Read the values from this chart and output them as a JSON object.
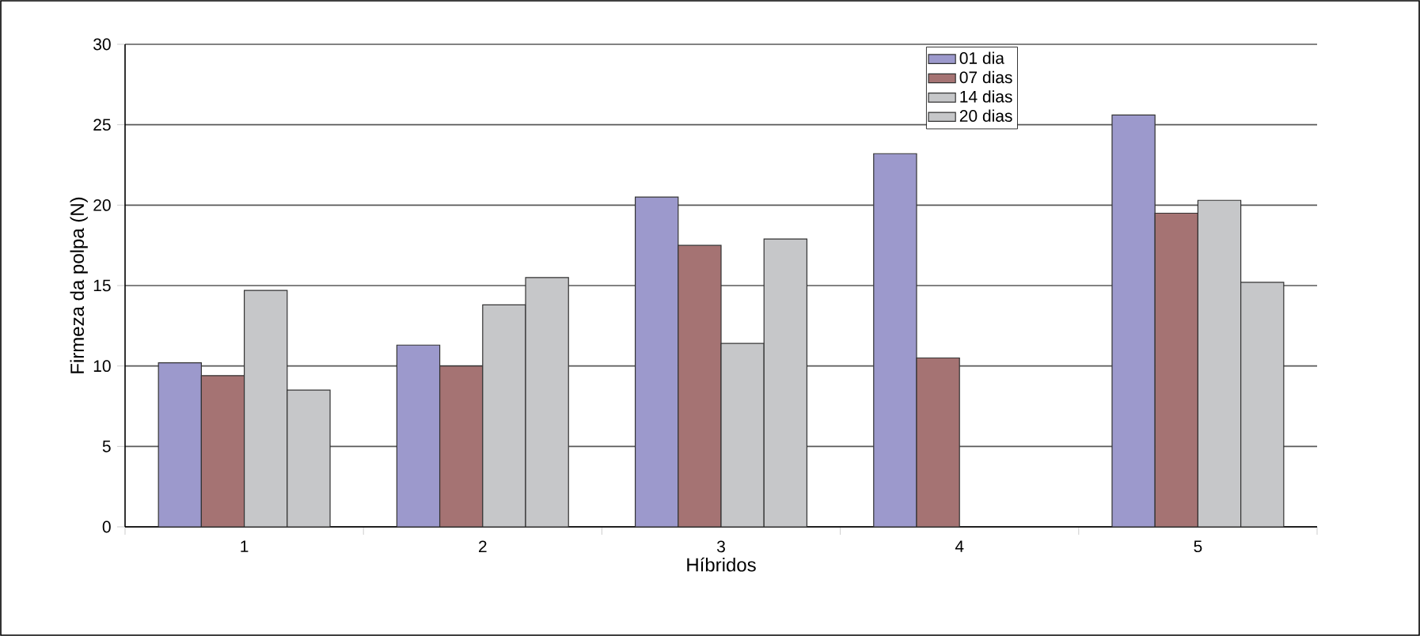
{
  "chart_data": {
    "type": "bar",
    "xlabel": "Híbridos",
    "ylabel": "Firmeza da polpa (N)",
    "categories": [
      "1",
      "2",
      "3",
      "4",
      "5"
    ],
    "series": [
      {
        "name": "01 dia",
        "color": "#9c99cc",
        "values": [
          10.2,
          11.3,
          20.5,
          23.2,
          25.6
        ]
      },
      {
        "name": "07 dias",
        "color": "#a57373",
        "values": [
          9.4,
          10.0,
          17.5,
          10.5,
          19.5
        ]
      },
      {
        "name": "14 dias",
        "color": "#c6c7c9",
        "values": [
          14.7,
          13.8,
          11.4,
          null,
          20.3
        ]
      },
      {
        "name": "20 dias",
        "color": "#c6c7c9",
        "values": [
          8.5,
          15.5,
          17.9,
          null,
          15.2
        ]
      }
    ],
    "ylim": [
      0,
      30
    ],
    "yticks": [
      0,
      5,
      10,
      15,
      20,
      25,
      30
    ],
    "grid": "y",
    "legend": "top right"
  }
}
